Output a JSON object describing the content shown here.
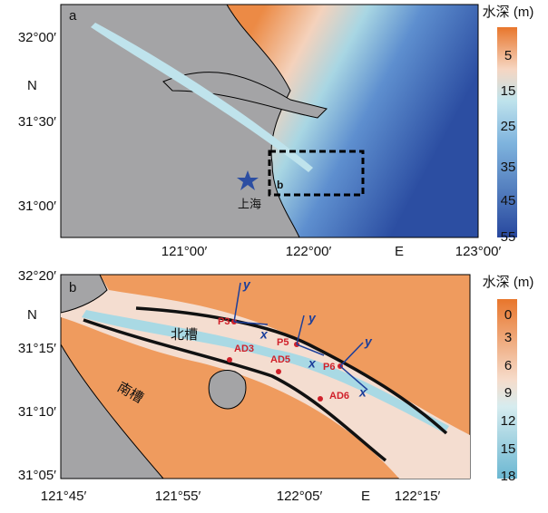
{
  "panel_a": {
    "label": "a",
    "y_axis": "N",
    "y_ticks": [
      "32°00′",
      "31°30′",
      "31°00′"
    ],
    "x_axis": "E",
    "x_ticks": [
      "121°00′",
      "122°00′",
      "123°00′"
    ],
    "colorbar_title": "水深 (m)",
    "colorbar_ticks": [
      5,
      15,
      25,
      35,
      45,
      55
    ],
    "place": "上海",
    "box_label": "b"
  },
  "panel_b": {
    "label": "b",
    "y_axis": "N",
    "y_ticks": [
      "32°20′",
      "31°15′",
      "31°10′",
      "31°05′"
    ],
    "x_axis": "E",
    "x_ticks": [
      "121°45′",
      "121°55′",
      "122°05′",
      "122°15′"
    ],
    "colorbar_title": "水深 (m)",
    "colorbar_ticks": [
      0,
      3,
      6,
      9,
      12,
      15,
      18
    ],
    "channels": [
      "北槽",
      "南槽"
    ],
    "stations": [
      "P3",
      "P5",
      "P6",
      "AD3",
      "AD5",
      "AD6"
    ],
    "vector_labels": [
      "x",
      "y"
    ]
  }
}
